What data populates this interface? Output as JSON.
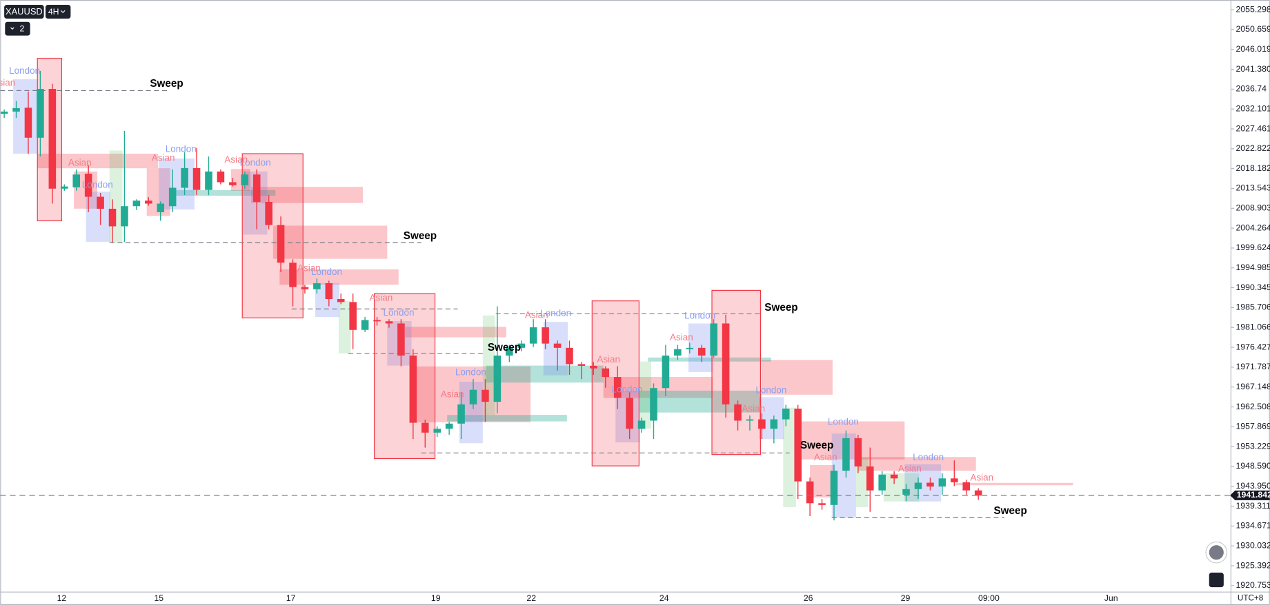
{
  "header": {
    "symbol": "XAUUSD",
    "interval": "4H",
    "indicator_count": "2"
  },
  "chart_data": {
    "type": "candlestick",
    "up_color": "#22ab94",
    "down_color": "#f23645",
    "ohlc": [
      [
        2031,
        2032,
        2030,
        2031.5
      ],
      [
        2031.5,
        2034,
        2030,
        2032.3
      ],
      [
        2032.4,
        2036.2,
        2021.6,
        2025.4
      ],
      [
        2025.4,
        2041,
        2021,
        2036.8
      ],
      [
        2036.8,
        2038,
        2010,
        2013.5
      ],
      [
        2013.5,
        2014.5,
        2013,
        2014
      ],
      [
        2013.8,
        2018,
        2013,
        2016.8
      ],
      [
        2017,
        2019,
        2008,
        2011.6
      ],
      [
        2011.6,
        2012.5,
        2005,
        2008.8
      ],
      [
        2008.8,
        2011,
        2001,
        2004.7
      ],
      [
        2004.7,
        2027,
        2001,
        2009.4
      ],
      [
        2009.4,
        2011,
        2008.5,
        2010.7
      ],
      [
        2010.7,
        2011.5,
        2009.5,
        2010
      ],
      [
        2008,
        2010.5,
        2006,
        2010
      ],
      [
        2009.4,
        2018,
        2008,
        2013.7
      ],
      [
        2013.7,
        2022,
        2012,
        2018.3
      ],
      [
        2018.3,
        2023,
        2012,
        2013.2
      ],
      [
        2013.2,
        2021,
        2012,
        2017.5
      ],
      [
        2017.5,
        2018,
        2014.5,
        2015
      ],
      [
        2015,
        2016,
        2014,
        2014.3
      ],
      [
        2014.3,
        2017.5,
        2013.5,
        2016.8
      ],
      [
        2016.8,
        2018,
        2004,
        2010.4
      ],
      [
        2010.4,
        2012,
        2004,
        2005
      ],
      [
        2005,
        2007,
        1994,
        1996.2
      ],
      [
        1996.2,
        1997,
        1986,
        1990.5
      ],
      [
        1990.5,
        1991,
        1989,
        1990
      ],
      [
        1990,
        1992.5,
        1989,
        1991.4
      ],
      [
        1991.4,
        1992,
        1986,
        1987.7
      ],
      [
        1987.7,
        1989,
        1986.5,
        1987
      ],
      [
        1987,
        1989,
        1976,
        1980.5
      ],
      [
        1980.5,
        1983.5,
        1980,
        1982.8
      ],
      [
        1982.8,
        1983.5,
        1981.5,
        1982.5
      ],
      [
        1982.5,
        1983,
        1981,
        1982
      ],
      [
        1982,
        1983,
        1972,
        1974.5
      ],
      [
        1974.5,
        1976,
        1955,
        1958.8
      ],
      [
        1958.8,
        1959.5,
        1953,
        1956.5
      ],
      [
        1956.5,
        1958,
        1955.5,
        1957.4
      ],
      [
        1957.4,
        1959,
        1956,
        1958.6
      ],
      [
        1958.6,
        1966,
        1955,
        1963.1
      ],
      [
        1963.1,
        1969,
        1962,
        1966.5
      ],
      [
        1966.5,
        1969,
        1959,
        1963.7
      ],
      [
        1963.7,
        1986,
        1961,
        1974.5
      ],
      [
        1974.5,
        1977,
        1973,
        1976.3
      ],
      [
        1976.3,
        1978,
        1975.5,
        1977.3
      ],
      [
        1977.3,
        1983,
        1976.5,
        1981.1
      ],
      [
        1981.1,
        1983,
        1976,
        1977.3
      ],
      [
        1977.3,
        1978,
        1971,
        1976.3
      ],
      [
        1976.3,
        1978,
        1970,
        1972.5
      ],
      [
        1972.5,
        1973,
        1969,
        1972.1
      ],
      [
        1972.1,
        1973,
        1970,
        1971.5
      ],
      [
        1971.5,
        1972,
        1967,
        1969.5
      ],
      [
        1969.5,
        1972,
        1962,
        1964.6
      ],
      [
        1964.6,
        1966,
        1955,
        1957.4
      ],
      [
        1957.4,
        1960,
        1956.5,
        1959.3
      ],
      [
        1959.3,
        1968,
        1955,
        1966.9
      ],
      [
        1966.9,
        1977,
        1965,
        1974.5
      ],
      [
        1974.5,
        1977,
        1973.5,
        1976
      ],
      [
        1976,
        1977.5,
        1975,
        1976.3
      ],
      [
        1976.3,
        1977,
        1973,
        1974.5
      ],
      [
        1974.5,
        1983,
        1974,
        1982
      ],
      [
        1982,
        1984,
        1960,
        1963.1
      ],
      [
        1963.1,
        1964,
        1957,
        1959.3
      ],
      [
        1959.3,
        1960.5,
        1957,
        1959.6
      ],
      [
        1959.6,
        1961,
        1955,
        1957.4
      ],
      [
        1957.4,
        1960.5,
        1954,
        1959.6
      ],
      [
        1959.6,
        1963,
        1958,
        1962.1
      ],
      [
        1962.1,
        1963,
        1941,
        1945.1
      ],
      [
        1945.1,
        1946,
        1937,
        1940
      ],
      [
        1940,
        1941,
        1938.5,
        1939.6
      ],
      [
        1939.6,
        1949,
        1936,
        1947.6
      ],
      [
        1947.6,
        1957,
        1946,
        1955.2
      ],
      [
        1955.2,
        1956,
        1947,
        1948.6
      ],
      [
        1948.6,
        1953,
        1938,
        1943
      ],
      [
        1943,
        1947.5,
        1942,
        1946.7
      ],
      [
        1946.7,
        1947.5,
        1944.5,
        1945.8
      ],
      [
        1942,
        1944.5,
        1940.5,
        1943.3
      ],
      [
        1943.3,
        1946,
        1941,
        1944.8
      ],
      [
        1944.8,
        1946,
        1943,
        1943.9
      ],
      [
        1943.9,
        1947,
        1942,
        1945.8
      ],
      [
        1945.8,
        1950,
        1944,
        1944.9
      ],
      [
        1944.9,
        1945.5,
        1942,
        1943
      ],
      [
        1943,
        1943.5,
        1940.8,
        1941.8
      ]
    ],
    "ylim": [
      1919.25,
      2057.57
    ],
    "yticks": [
      2055.298,
      2050.659,
      2046.019,
      {
        "value": 2041.38,
        "label": "2041.380"
      },
      2036.74,
      2032.101,
      2027.461,
      2022.822,
      2018.182,
      2013.543,
      2008.903,
      2004.264,
      1999.624,
      1994.985,
      1990.345,
      1985.706,
      1981.066,
      1976.427,
      1971.787,
      1967.148,
      1962.508,
      1957.869,
      1953.229,
      {
        "value": 1948.59,
        "label": "1948.590"
      },
      {
        "value": 1943.95,
        "label": "1943.950"
      },
      1939.311,
      1934.671,
      1930.032,
      1925.392,
      1920.753
    ],
    "grid": false,
    "xlabels": [
      "12",
      "15",
      "17",
      "19",
      "22",
      "24",
      "26",
      "29",
      "09:00",
      "Jun"
    ],
    "timezone": "UTC+8",
    "last_price": 1941.842,
    "annotations": [
      "Sweep",
      "Sweep",
      "Sweep",
      "Sweep",
      "Sweep",
      "Sweep",
      "Asian",
      "Asian",
      "Asian",
      "Asian",
      "Asian",
      "Asian",
      "Asian",
      "Asian",
      "Asian",
      "Asian",
      "Asian",
      "Asian",
      "Asian",
      "Asian",
      "London",
      "London",
      "London",
      "London",
      "London",
      "London",
      "London",
      "London",
      "London",
      "London",
      "London",
      "London",
      "London"
    ]
  }
}
